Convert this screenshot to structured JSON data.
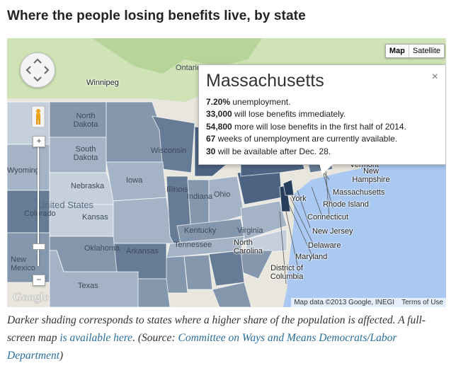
{
  "title": "Where the people losing benefits live, by state",
  "map": {
    "type_buttons": [
      "Map",
      "Satellite"
    ],
    "selected_type": "Map",
    "zoom_in": "+",
    "zoom_out": "−",
    "logo": "Google",
    "attribution": "Map data ©2013 Google, INEGI",
    "terms": "Terms of Use",
    "labels": {
      "ontario": "Ontario",
      "winnipeg": "Winnipeg",
      "north_dakota": "North\nDakota",
      "south_dakota": "South\nDakota",
      "wyoming": "Wyoming",
      "nebraska": "Nebraska",
      "iowa": "Iowa",
      "wisconsin": "Wisconsin",
      "illinois": "Illinois",
      "indiana": "Indiana",
      "ohio": "Ohio",
      "kansas": "Kansas",
      "oklahoma": "Oklahoma",
      "texas": "Texas",
      "arkansas": "Arkansas",
      "tennessee": "Tennessee",
      "kentucky": "Kentucky",
      "virginia": "Virginia",
      "north_carolina": "North\nCarolina",
      "colorado": "Colorado",
      "new_mexico": "New\nMexico",
      "united_states": "United States",
      "new_york": "York",
      "vermont": "Vermont",
      "new_hampshire": "New\nHampshire",
      "massachusetts": "Massachusetts",
      "rhode_island": "Rhode Island",
      "connecticut": "Connecticut",
      "new_jersey": "New Jersey",
      "delaware": "Delaware",
      "maryland": "Maryland",
      "dc": "District of\nColumbia"
    },
    "state_shading": {
      "lightest": "#c5d0dc",
      "light": "#a4b3c5",
      "medium": "#8497ad",
      "dark": "#667c96",
      "darker": "#4c6482",
      "darkest": "#253d5b"
    },
    "water_color": "#a9c8f2",
    "land_color": "#e9e6dd",
    "canada_color": "#cfe3b6"
  },
  "popup": {
    "state": "Massachusetts",
    "close": "×",
    "lines": [
      {
        "bold": "7.20%",
        "text": " unemployment."
      },
      {
        "bold": "33,000",
        "text": " will lose benefits immediately."
      },
      {
        "bold": "54,800",
        "text": " more will lose benefits in the first half of 2014."
      },
      {
        "bold": "67",
        "text": " weeks of unemployment are currently available."
      },
      {
        "bold": "30",
        "text": " will be available after Dec. 28."
      }
    ]
  },
  "caption": {
    "part1": "Darker shading corresponds to states where a higher share of the population is affected. A full-screen map ",
    "link1": "is available here",
    "part2": ". (Source: ",
    "link2": "Committee on Ways and Means Democrats/Labor Department",
    "part3": ")"
  }
}
